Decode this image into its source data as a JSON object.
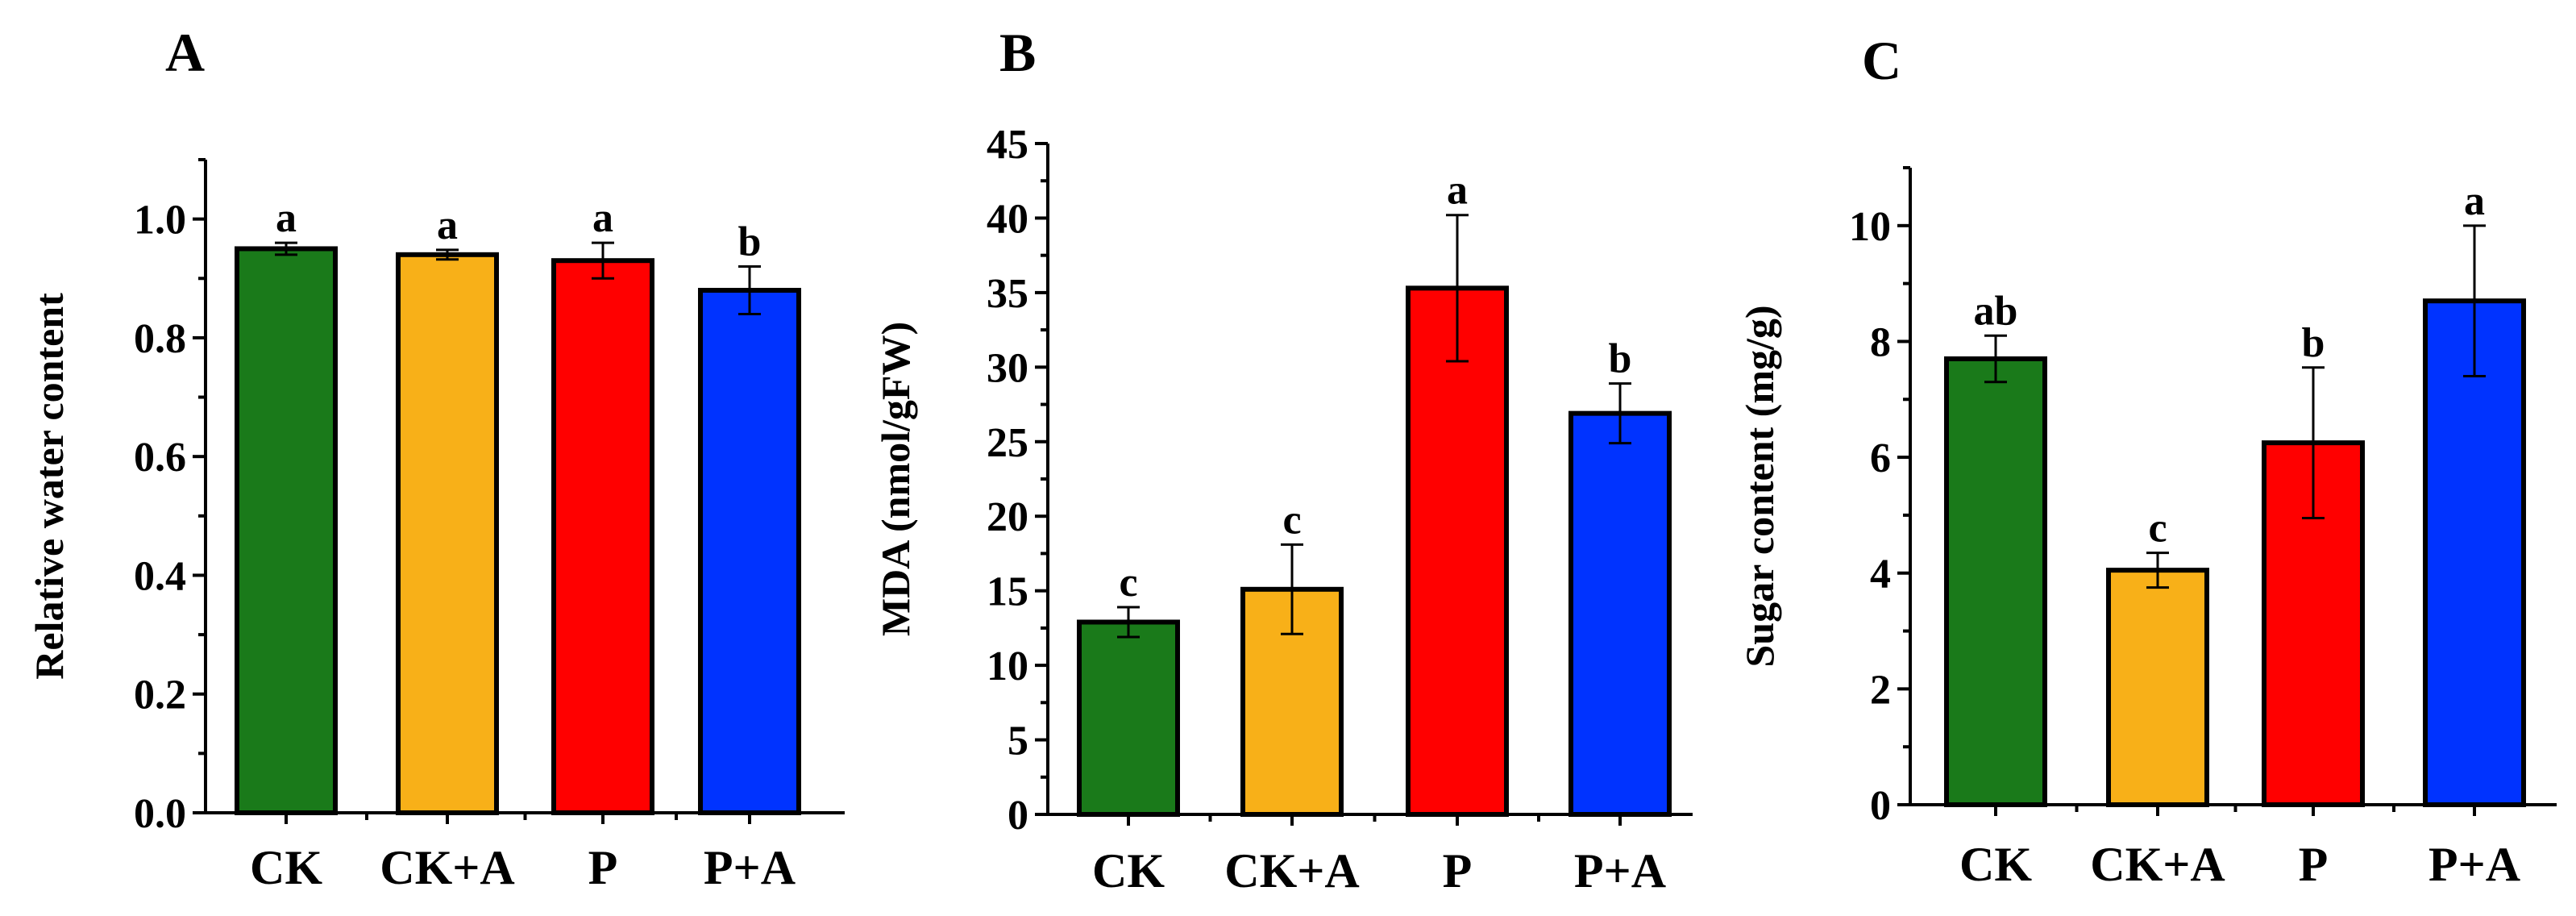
{
  "chart_data": [
    {
      "type": "bar",
      "panel": "A",
      "ylabel": "Relative water content",
      "ylim": [
        0,
        1.1
      ],
      "yticks": [
        0.0,
        0.2,
        0.4,
        0.6,
        0.8,
        1.0
      ],
      "ytick_labels": [
        "0.0",
        "0.2",
        "0.4",
        "0.6",
        "0.8",
        "1.0"
      ],
      "categories": [
        "CK",
        "CK+A",
        "P",
        "P+A"
      ],
      "values": [
        0.95,
        0.94,
        0.93,
        0.88
      ],
      "errors": [
        0.01,
        0.008,
        0.03,
        0.04
      ],
      "significance": [
        "a",
        "a",
        "a",
        "b"
      ],
      "colors": [
        "#1a7a1a",
        "#f8b018",
        "#ff0000",
        "#0033ff"
      ]
    },
    {
      "type": "bar",
      "panel": "B",
      "ylabel": "MDA (nmol/gFW)",
      "ylim": [
        0,
        45
      ],
      "yticks": [
        0,
        5,
        10,
        15,
        20,
        25,
        30,
        35,
        40,
        45
      ],
      "ytick_labels": [
        "0",
        "5",
        "10",
        "15",
        "20",
        "25",
        "30",
        "35",
        "40",
        "45"
      ],
      "categories": [
        "CK",
        "CK+A",
        "P",
        "P+A"
      ],
      "values": [
        12.9,
        15.1,
        35.3,
        26.9
      ],
      "errors": [
        1.0,
        3.0,
        4.9,
        2.0
      ],
      "significance": [
        "c",
        "c",
        "a",
        "b"
      ],
      "colors": [
        "#1a7a1a",
        "#f8b018",
        "#ff0000",
        "#0033ff"
      ]
    },
    {
      "type": "bar",
      "panel": "C",
      "ylabel": "Sugar content (mg/g)",
      "ylim": [
        0,
        11
      ],
      "yticks": [
        0,
        2,
        4,
        6,
        8,
        10
      ],
      "ytick_labels": [
        "0",
        "2",
        "4",
        "6",
        "8",
        "10"
      ],
      "categories": [
        "CK",
        "CK+A",
        "P",
        "P+A"
      ],
      "values": [
        7.7,
        4.05,
        6.25,
        8.7
      ],
      "errors": [
        0.4,
        0.3,
        1.3,
        1.3
      ],
      "significance": [
        "ab",
        "c",
        "b",
        "a"
      ],
      "colors": [
        "#1a7a1a",
        "#f8b018",
        "#ff0000",
        "#0033ff"
      ]
    }
  ]
}
